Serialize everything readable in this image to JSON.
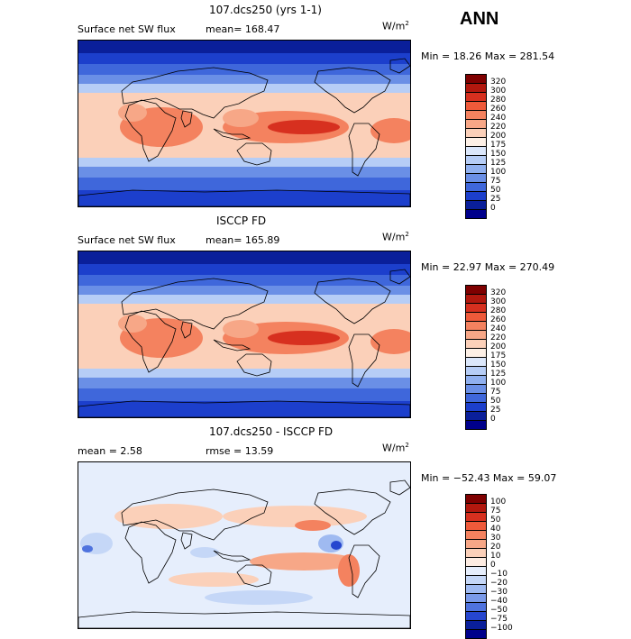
{
  "season": "ANN",
  "panels": [
    {
      "title": "107.dcs250 (yrs 1-1)",
      "left_text": "Surface net SW flux",
      "mid_text": "mean= 168.47",
      "unit": "W/m",
      "unit_exp": "2",
      "minmax": "Min =  18.26 Max = 281.54",
      "levels": [
        "320",
        "300",
        "280",
        "260",
        "240",
        "220",
        "200",
        "175",
        "150",
        "125",
        "100",
        "75",
        "50",
        "25",
        "0"
      ],
      "colors": [
        "#7f0000",
        "#b2180e",
        "#d7301f",
        "#ef5a3a",
        "#f4825f",
        "#f7a787",
        "#fbd0b9",
        "#fdf0e6",
        "#dbe7fb",
        "#b6cdf6",
        "#90b0ef",
        "#6a8fe6",
        "#3f67db",
        "#1c3fcc",
        "#0a1f9a",
        "#00008b"
      ],
      "kind": "abs"
    },
    {
      "title": "ISCCP FD",
      "left_text": "Surface net SW flux",
      "mid_text": "mean= 165.89",
      "unit": "W/m",
      "unit_exp": "2",
      "minmax": "Min =  22.97 Max = 270.49",
      "levels": [
        "320",
        "300",
        "280",
        "260",
        "240",
        "220",
        "200",
        "175",
        "150",
        "125",
        "100",
        "75",
        "50",
        "25",
        "0"
      ],
      "colors": [
        "#7f0000",
        "#b2180e",
        "#d7301f",
        "#ef5a3a",
        "#f4825f",
        "#f7a787",
        "#fbd0b9",
        "#fdf0e6",
        "#dbe7fb",
        "#b6cdf6",
        "#90b0ef",
        "#6a8fe6",
        "#3f67db",
        "#1c3fcc",
        "#0a1f9a",
        "#00008b"
      ],
      "kind": "abs"
    },
    {
      "title": "107.dcs250 - ISCCP FD",
      "left_text": "mean =    2.58",
      "mid_text": "rmse =   13.59",
      "unit": "W/m",
      "unit_exp": "2",
      "minmax": "Min = −52.43 Max =   59.07",
      "levels": [
        "100",
        "75",
        "50",
        "40",
        "30",
        "20",
        "10",
        "0",
        "−10",
        "−20",
        "−30",
        "−40",
        "−50",
        "−75",
        "−100"
      ],
      "colors": [
        "#7f0000",
        "#b2180e",
        "#d7301f",
        "#ef5a3a",
        "#f4825f",
        "#f7a787",
        "#fbd0b9",
        "#fdece2",
        "#e6eefc",
        "#c5d7f7",
        "#9fbaf1",
        "#7a9ae9",
        "#4f73de",
        "#2646cf",
        "#0a1f9a",
        "#00008b"
      ],
      "kind": "diff"
    }
  ],
  "chart_data": [
    {
      "type": "heatmap",
      "title": "107.dcs250 (yrs 1-1)",
      "subtitle": "Surface net SW flux",
      "mean": 168.47,
      "min": 18.26,
      "max": 281.54,
      "units": "W/m2",
      "contour_levels": [
        0,
        25,
        50,
        75,
        100,
        125,
        150,
        175,
        200,
        220,
        240,
        260,
        280,
        300,
        320
      ]
    },
    {
      "type": "heatmap",
      "title": "ISCCP FD",
      "subtitle": "Surface net SW flux",
      "mean": 165.89,
      "min": 22.97,
      "max": 270.49,
      "units": "W/m2",
      "contour_levels": [
        0,
        25,
        50,
        75,
        100,
        125,
        150,
        175,
        200,
        220,
        240,
        260,
        280,
        300,
        320
      ]
    },
    {
      "type": "heatmap",
      "title": "107.dcs250 - ISCCP FD",
      "mean": 2.58,
      "rmse": 13.59,
      "min": -52.43,
      "max": 59.07,
      "units": "W/m2",
      "contour_levels": [
        -100,
        -75,
        -50,
        -40,
        -30,
        -20,
        -10,
        0,
        10,
        20,
        30,
        40,
        50,
        75,
        100
      ]
    }
  ]
}
